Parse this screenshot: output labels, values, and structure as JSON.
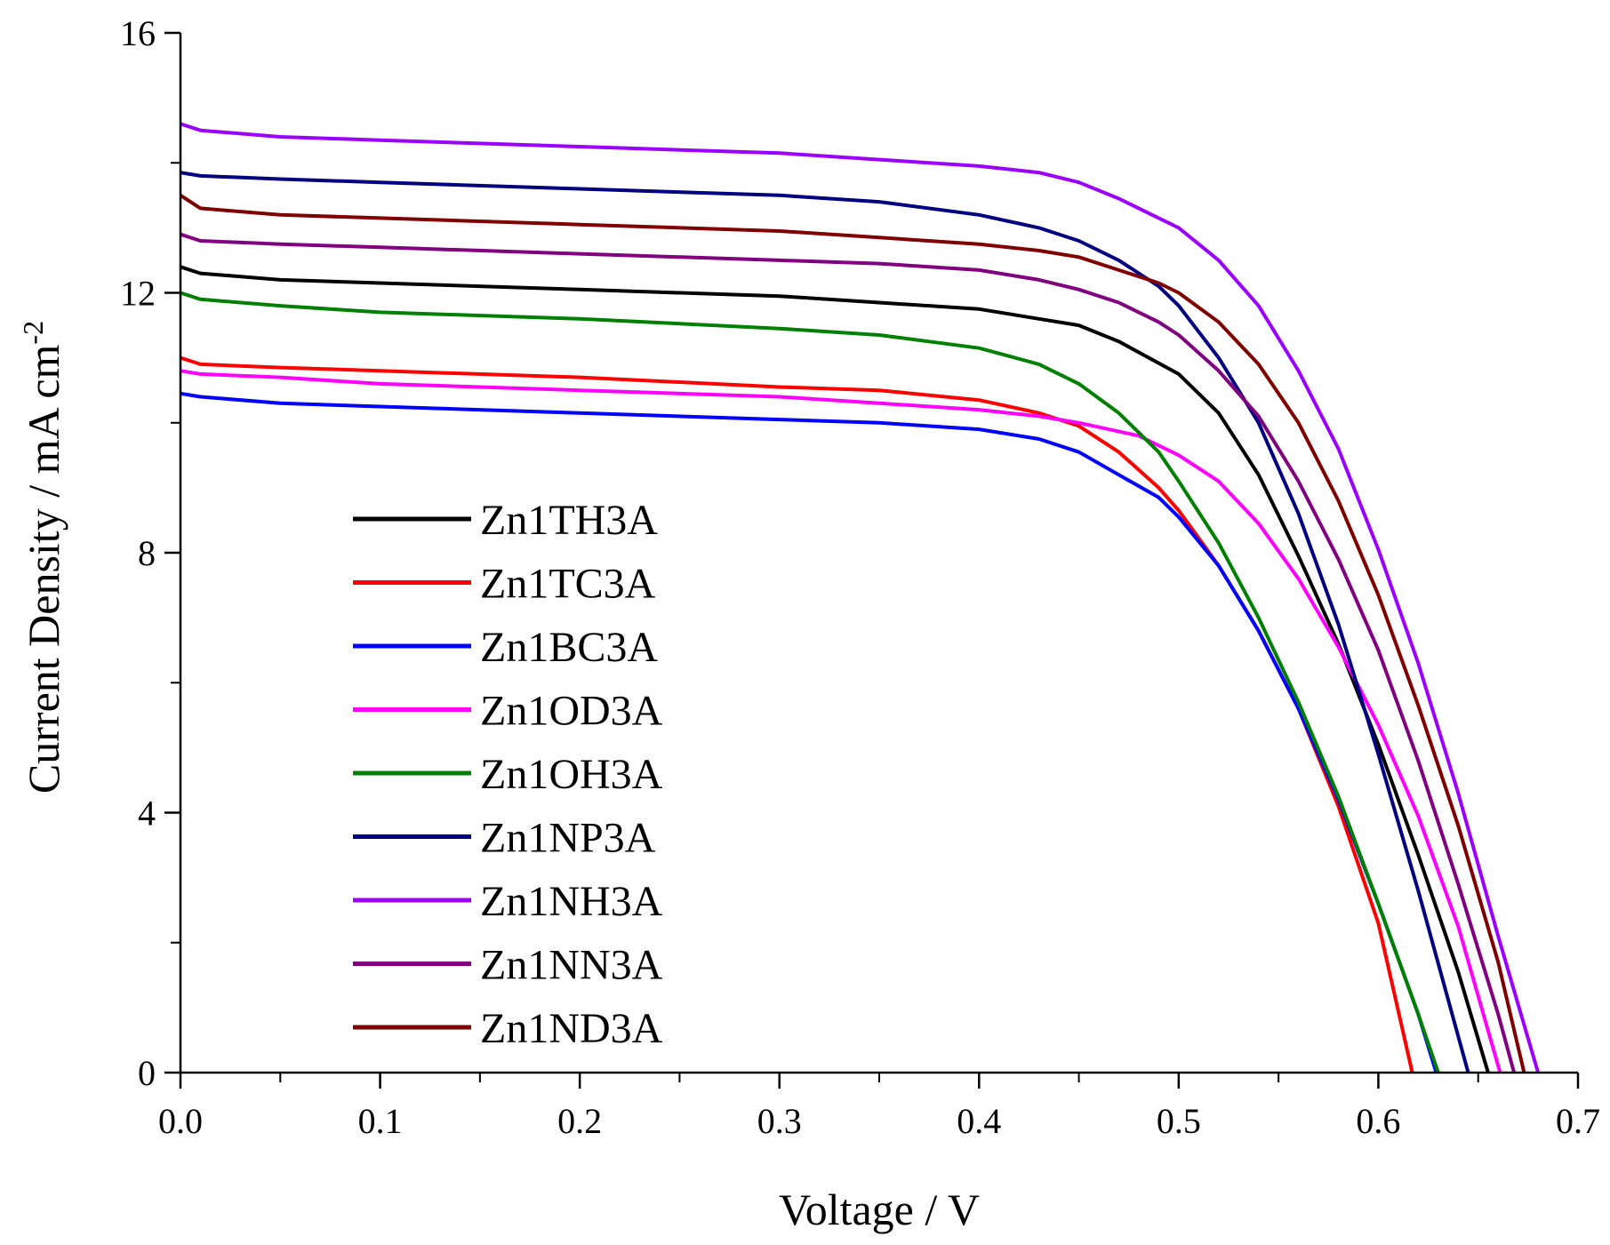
{
  "chart_data": {
    "type": "line",
    "title": "",
    "xlabel": "Voltage / V",
    "ylabel": "Current Density / mA cm",
    "ylabel_superscript": "-2",
    "xlim": [
      0,
      0.7
    ],
    "ylim": [
      0,
      16
    ],
    "x_ticks": [
      "0.0",
      "0.1",
      "0.2",
      "0.3",
      "0.4",
      "0.5",
      "0.6",
      "0.7"
    ],
    "y_ticks": [
      "0",
      "4",
      "8",
      "12",
      "16"
    ],
    "grid": false,
    "legend_position": "center-left",
    "series": [
      {
        "name": "Zn1TH3A",
        "color": "#000000",
        "points": [
          [
            0,
            12.4
          ],
          [
            0.01,
            12.3
          ],
          [
            0.05,
            12.2
          ],
          [
            0.1,
            12.15
          ],
          [
            0.2,
            12.05
          ],
          [
            0.3,
            11.95
          ],
          [
            0.35,
            11.85
          ],
          [
            0.4,
            11.75
          ],
          [
            0.43,
            11.6
          ],
          [
            0.45,
            11.5
          ],
          [
            0.47,
            11.25
          ],
          [
            0.5,
            10.75
          ],
          [
            0.52,
            10.15
          ],
          [
            0.54,
            9.2
          ],
          [
            0.56,
            7.95
          ],
          [
            0.58,
            6.6
          ],
          [
            0.6,
            5.05
          ],
          [
            0.62,
            3.35
          ],
          [
            0.64,
            1.55
          ],
          [
            0.655,
            0
          ]
        ]
      },
      {
        "name": "Zn1TC3A",
        "color": "#ff0000",
        "points": [
          [
            0,
            11.0
          ],
          [
            0.01,
            10.9
          ],
          [
            0.05,
            10.85
          ],
          [
            0.1,
            10.8
          ],
          [
            0.2,
            10.7
          ],
          [
            0.3,
            10.55
          ],
          [
            0.35,
            10.5
          ],
          [
            0.4,
            10.35
          ],
          [
            0.43,
            10.15
          ],
          [
            0.45,
            9.95
          ],
          [
            0.47,
            9.55
          ],
          [
            0.49,
            9.0
          ],
          [
            0.5,
            8.65
          ],
          [
            0.52,
            7.8
          ],
          [
            0.54,
            6.8
          ],
          [
            0.56,
            5.6
          ],
          [
            0.58,
            4.1
          ],
          [
            0.6,
            2.3
          ],
          [
            0.617,
            0
          ]
        ]
      },
      {
        "name": "Zn1BC3A",
        "color": "#0000ff",
        "points": [
          [
            0,
            10.45
          ],
          [
            0.01,
            10.4
          ],
          [
            0.05,
            10.3
          ],
          [
            0.1,
            10.25
          ],
          [
            0.2,
            10.15
          ],
          [
            0.3,
            10.05
          ],
          [
            0.35,
            10.0
          ],
          [
            0.4,
            9.9
          ],
          [
            0.43,
            9.75
          ],
          [
            0.45,
            9.55
          ],
          [
            0.47,
            9.2
          ],
          [
            0.49,
            8.85
          ],
          [
            0.5,
            8.55
          ],
          [
            0.52,
            7.8
          ],
          [
            0.54,
            6.8
          ],
          [
            0.56,
            5.6
          ],
          [
            0.58,
            4.2
          ],
          [
            0.6,
            2.6
          ],
          [
            0.62,
            0.9
          ],
          [
            0.629,
            0
          ]
        ]
      },
      {
        "name": "Zn1OD3A",
        "color": "#ff00ff",
        "points": [
          [
            0,
            10.8
          ],
          [
            0.01,
            10.75
          ],
          [
            0.05,
            10.7
          ],
          [
            0.1,
            10.6
          ],
          [
            0.2,
            10.5
          ],
          [
            0.3,
            10.4
          ],
          [
            0.35,
            10.3
          ],
          [
            0.4,
            10.2
          ],
          [
            0.43,
            10.1
          ],
          [
            0.45,
            10.0
          ],
          [
            0.48,
            9.8
          ],
          [
            0.5,
            9.5
          ],
          [
            0.52,
            9.1
          ],
          [
            0.54,
            8.45
          ],
          [
            0.56,
            7.6
          ],
          [
            0.58,
            6.55
          ],
          [
            0.6,
            5.35
          ],
          [
            0.62,
            3.95
          ],
          [
            0.64,
            2.25
          ],
          [
            0.661,
            0
          ]
        ]
      },
      {
        "name": "Zn1OH3A",
        "color": "#008000",
        "points": [
          [
            0,
            12.0
          ],
          [
            0.01,
            11.9
          ],
          [
            0.05,
            11.8
          ],
          [
            0.1,
            11.7
          ],
          [
            0.2,
            11.6
          ],
          [
            0.3,
            11.45
          ],
          [
            0.35,
            11.35
          ],
          [
            0.4,
            11.15
          ],
          [
            0.43,
            10.9
          ],
          [
            0.45,
            10.6
          ],
          [
            0.47,
            10.15
          ],
          [
            0.49,
            9.55
          ],
          [
            0.5,
            9.1
          ],
          [
            0.52,
            8.15
          ],
          [
            0.54,
            7.0
          ],
          [
            0.56,
            5.7
          ],
          [
            0.58,
            4.25
          ],
          [
            0.6,
            2.6
          ],
          [
            0.62,
            0.9
          ],
          [
            0.63,
            0
          ]
        ]
      },
      {
        "name": "Zn1NP3A",
        "color": "#000080",
        "points": [
          [
            0,
            13.85
          ],
          [
            0.01,
            13.8
          ],
          [
            0.05,
            13.75
          ],
          [
            0.1,
            13.7
          ],
          [
            0.2,
            13.6
          ],
          [
            0.3,
            13.5
          ],
          [
            0.35,
            13.4
          ],
          [
            0.4,
            13.2
          ],
          [
            0.43,
            13.0
          ],
          [
            0.45,
            12.8
          ],
          [
            0.47,
            12.5
          ],
          [
            0.49,
            12.1
          ],
          [
            0.5,
            11.8
          ],
          [
            0.52,
            11.0
          ],
          [
            0.54,
            10.0
          ],
          [
            0.56,
            8.6
          ],
          [
            0.58,
            6.9
          ],
          [
            0.6,
            4.9
          ],
          [
            0.62,
            2.8
          ],
          [
            0.645,
            0
          ]
        ]
      },
      {
        "name": "Zn1NH3A",
        "color": "#9b00ff",
        "points": [
          [
            0,
            14.6
          ],
          [
            0.01,
            14.5
          ],
          [
            0.05,
            14.4
          ],
          [
            0.1,
            14.35
          ],
          [
            0.2,
            14.25
          ],
          [
            0.3,
            14.15
          ],
          [
            0.35,
            14.05
          ],
          [
            0.4,
            13.95
          ],
          [
            0.43,
            13.85
          ],
          [
            0.45,
            13.7
          ],
          [
            0.47,
            13.45
          ],
          [
            0.5,
            13.0
          ],
          [
            0.52,
            12.5
          ],
          [
            0.54,
            11.8
          ],
          [
            0.56,
            10.8
          ],
          [
            0.58,
            9.6
          ],
          [
            0.6,
            8.05
          ],
          [
            0.62,
            6.3
          ],
          [
            0.64,
            4.3
          ],
          [
            0.66,
            2.1
          ],
          [
            0.68,
            0
          ]
        ]
      },
      {
        "name": "Zn1NN3A",
        "color": "#800080",
        "points": [
          [
            0,
            12.9
          ],
          [
            0.01,
            12.8
          ],
          [
            0.05,
            12.75
          ],
          [
            0.1,
            12.7
          ],
          [
            0.2,
            12.6
          ],
          [
            0.3,
            12.5
          ],
          [
            0.35,
            12.45
          ],
          [
            0.4,
            12.35
          ],
          [
            0.43,
            12.2
          ],
          [
            0.45,
            12.05
          ],
          [
            0.47,
            11.85
          ],
          [
            0.49,
            11.55
          ],
          [
            0.5,
            11.35
          ],
          [
            0.52,
            10.8
          ],
          [
            0.54,
            10.1
          ],
          [
            0.56,
            9.1
          ],
          [
            0.58,
            7.9
          ],
          [
            0.6,
            6.5
          ],
          [
            0.62,
            4.8
          ],
          [
            0.64,
            2.9
          ],
          [
            0.66,
            0.9
          ],
          [
            0.668,
            0
          ]
        ]
      },
      {
        "name": "Zn1ND3A",
        "color": "#800000",
        "points": [
          [
            0,
            13.5
          ],
          [
            0.01,
            13.3
          ],
          [
            0.05,
            13.2
          ],
          [
            0.1,
            13.15
          ],
          [
            0.2,
            13.05
          ],
          [
            0.3,
            12.95
          ],
          [
            0.35,
            12.85
          ],
          [
            0.4,
            12.75
          ],
          [
            0.43,
            12.65
          ],
          [
            0.45,
            12.55
          ],
          [
            0.47,
            12.35
          ],
          [
            0.49,
            12.15
          ],
          [
            0.5,
            12.0
          ],
          [
            0.52,
            11.55
          ],
          [
            0.54,
            10.9
          ],
          [
            0.56,
            10.0
          ],
          [
            0.58,
            8.8
          ],
          [
            0.6,
            7.35
          ],
          [
            0.62,
            5.65
          ],
          [
            0.64,
            3.8
          ],
          [
            0.66,
            1.7
          ],
          [
            0.673,
            0
          ]
        ]
      }
    ]
  }
}
